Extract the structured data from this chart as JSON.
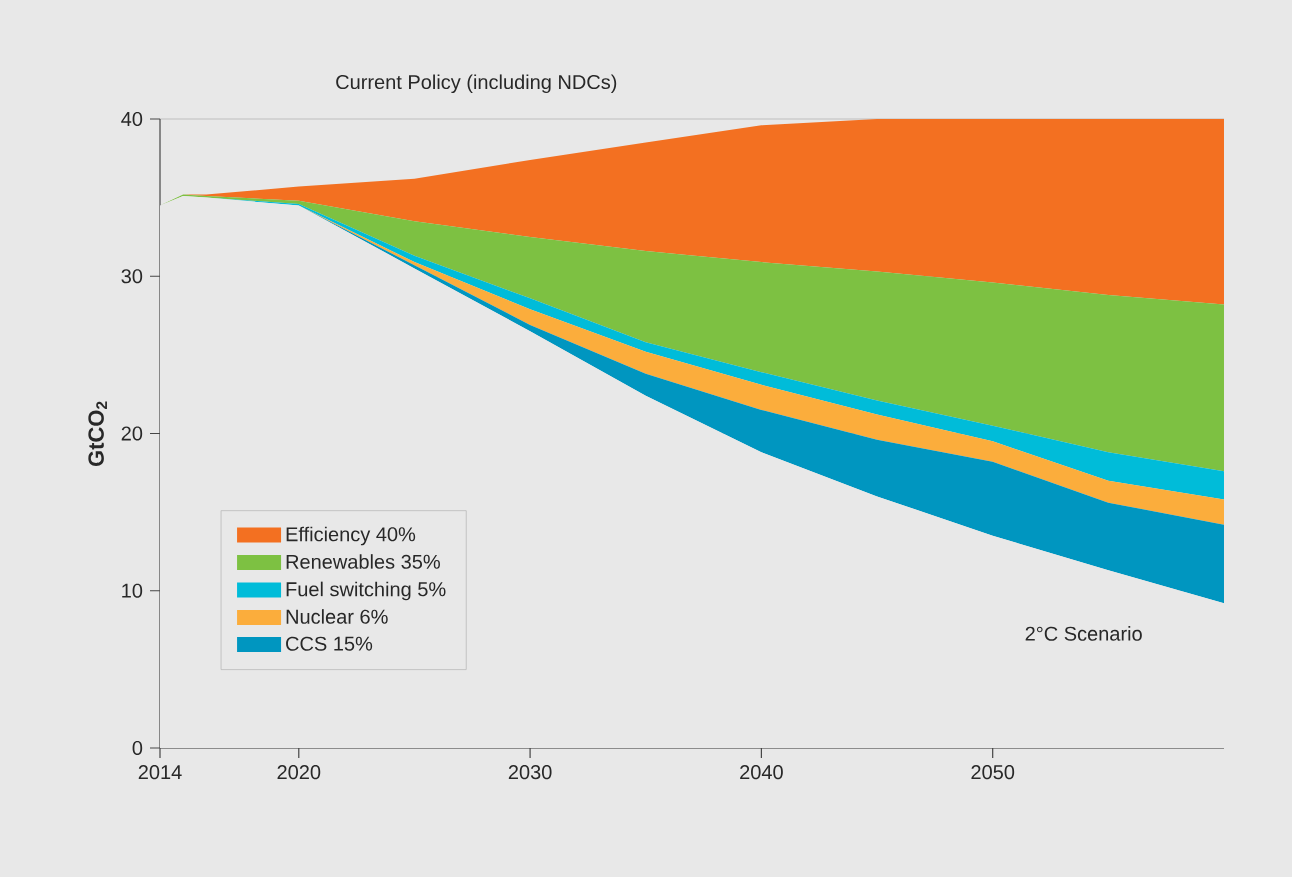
{
  "chart_data": {
    "type": "area",
    "stacked": true,
    "ylabel": "GtCO$_{2}$",
    "x": [
      2014,
      2015,
      2016,
      2020,
      2025,
      2030,
      2035,
      2040,
      2045,
      2050,
      2055,
      2060
    ],
    "series": [
      {
        "color": "#e8e8e8",
        "values": [
          34.5,
          35.1,
          35.0,
          34.5,
          30.5,
          26.5,
          22.4,
          18.8,
          16.0,
          13.5,
          11.3,
          9.2
        ]
      },
      {
        "name": "CCS 15%",
        "color": "#0096c0",
        "values": [
          0,
          0,
          0,
          0,
          0.2,
          0.4,
          1.4,
          2.7,
          3.6,
          4.7,
          4.3,
          5.0
        ]
      },
      {
        "name": "Nuclear 6%",
        "color": "#fbad3c",
        "values": [
          0,
          0,
          0,
          0,
          0.2,
          1.0,
          1.4,
          1.6,
          1.6,
          1.3,
          1.4,
          1.6
        ]
      },
      {
        "name": "Fuel switching 5%",
        "color": "#00bcd9",
        "values": [
          0,
          0,
          0,
          0.1,
          0.4,
          0.7,
          0.6,
          0.8,
          0.9,
          1.0,
          1.8,
          1.8
        ]
      },
      {
        "name": "Renewables 35%",
        "color": "#7dc142",
        "values": [
          0,
          0.1,
          0.1,
          0.2,
          2.2,
          3.9,
          5.8,
          7.0,
          8.2,
          9.1,
          10.0,
          10.6
        ]
      },
      {
        "name": "Efficiency 40%",
        "color": "#f37021",
        "values": [
          0,
          0,
          0.1,
          0.9,
          2.7,
          4.9,
          6.9,
          8.7,
          9.7,
          10.4,
          11.2,
          11.8
        ]
      }
    ],
    "xlim": [
      2014,
      2060
    ],
    "xticks": [
      2014,
      2020,
      2030,
      2040,
      2050
    ],
    "ylim": [
      0,
      40
    ],
    "yticks": [
      0,
      10,
      20,
      30,
      40
    ],
    "grid": "y",
    "legend": "bottom left",
    "annotations": [
      "Current Policy (including NDCs)",
      "2°C Scenario"
    ]
  }
}
